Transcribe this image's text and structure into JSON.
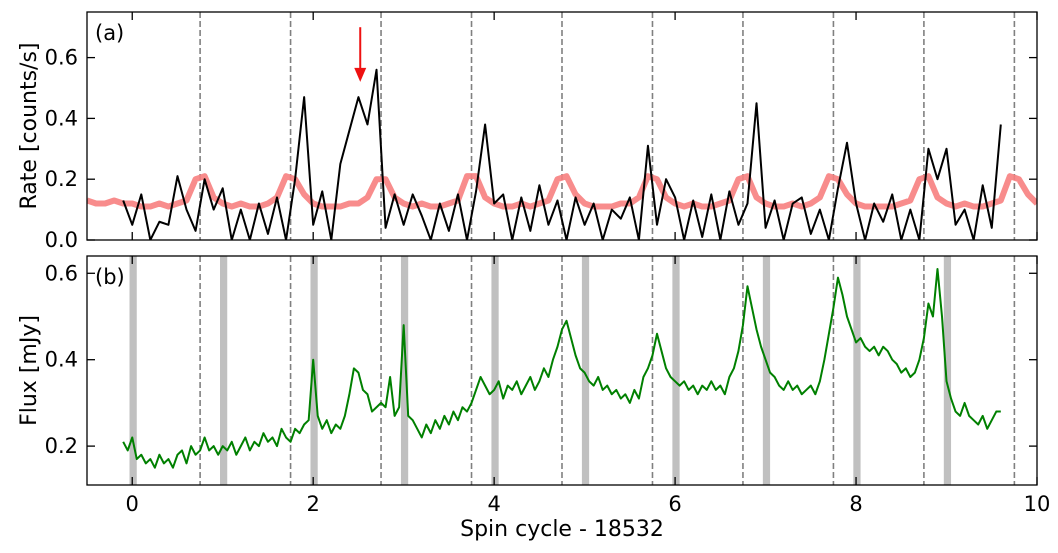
{
  "chart_data": [
    {
      "type": "line",
      "panel_label": "(a)",
      "ylabel": "Rate [counts/s]",
      "xlim": [
        -0.5,
        10
      ],
      "ylim": [
        0,
        0.75
      ],
      "yticks": [
        {
          "value": 0,
          "label": "0.0"
        },
        0.2,
        0.4,
        0.6
      ],
      "vlines": [
        0.75,
        1.75,
        2.75,
        3.75,
        4.75,
        5.75,
        6.75,
        7.75,
        8.75,
        9.75
      ],
      "arrow": {
        "x": 2.52,
        "y": [
          0.7,
          0.52
        ],
        "color": "#ee1111"
      },
      "x": [
        -0.5,
        -0.4,
        -0.3,
        -0.2,
        -0.1,
        0,
        0.1,
        0.2,
        0.3,
        0.4,
        0.5,
        0.6,
        0.7,
        0.8,
        0.9,
        1,
        1.1,
        1.2,
        1.3,
        1.4,
        1.5,
        1.6,
        1.7,
        1.8,
        1.9,
        2,
        2.1,
        2.2,
        2.3,
        2.4,
        2.5,
        2.6,
        2.7,
        2.8,
        2.9,
        3,
        3.1,
        3.2,
        3.3,
        3.4,
        3.5,
        3.6,
        3.7,
        3.8,
        3.9,
        4,
        4.1,
        4.2,
        4.3,
        4.4,
        4.5,
        4.6,
        4.7,
        4.8,
        4.9,
        5,
        5.1,
        5.2,
        5.3,
        5.4,
        5.5,
        5.6,
        5.7,
        5.8,
        5.9,
        6,
        6.1,
        6.2,
        6.3,
        6.4,
        6.5,
        6.6,
        6.7,
        6.8,
        6.9,
        7,
        7.1,
        7.2,
        7.3,
        7.4,
        7.5,
        7.6,
        7.7,
        7.8,
        7.9,
        8,
        8.1,
        8.2,
        8.3,
        8.4,
        8.5,
        8.6,
        8.7,
        8.8,
        8.9,
        9,
        9.1,
        9.2,
        9.3,
        9.4,
        9.5,
        9.6,
        9.7,
        9.8,
        9.9,
        10
      ],
      "series": [
        {
          "color": "#f77f7f",
          "values": [
            0.13,
            0.12,
            0.12,
            0.13,
            0.12,
            0.12,
            0.11,
            0.11,
            0.12,
            0.11,
            0.12,
            0.13,
            0.2,
            0.21,
            0.14,
            0.12,
            0.11,
            0.12,
            0.11,
            0.11,
            0.12,
            0.14,
            0.21,
            0.2,
            0.15,
            0.12,
            0.11,
            0.11,
            0.11,
            0.12,
            0.12,
            0.14,
            0.2,
            0.2,
            0.14,
            0.12,
            0.11,
            0.12,
            0.11,
            0.11,
            0.12,
            0.13,
            0.21,
            0.21,
            0.14,
            0.12,
            0.11,
            0.11,
            0.12,
            0.11,
            0.12,
            0.13,
            0.2,
            0.21,
            0.15,
            0.12,
            0.11,
            0.11,
            0.11,
            0.12,
            0.12,
            0.14,
            0.21,
            0.2,
            0.14,
            0.12,
            0.11,
            0.12,
            0.11,
            0.11,
            0.12,
            0.13,
            0.2,
            0.21,
            0.14,
            0.12,
            0.11,
            0.11,
            0.12,
            0.11,
            0.12,
            0.14,
            0.21,
            0.2,
            0.15,
            0.12,
            0.11,
            0.11,
            0.11,
            0.11,
            0.12,
            0.13,
            0.2,
            0.21,
            0.14,
            0.12,
            0.11,
            0.12,
            0.11,
            0.11,
            0.12,
            0.13,
            0.21,
            0.2,
            0.15,
            0.12
          ]
        },
        {
          "color": "#000000",
          "values": [
            null,
            null,
            null,
            null,
            0.13,
            0.05,
            0.15,
            0.0,
            0.06,
            0.05,
            0.21,
            0.1,
            0.03,
            0.2,
            0.1,
            0.17,
            0.0,
            0.1,
            0.0,
            0.12,
            0.02,
            0.14,
            0.0,
            0.2,
            0.47,
            0.05,
            0.16,
            0.0,
            0.25,
            0.36,
            0.47,
            0.38,
            0.56,
            0.04,
            0.15,
            0.05,
            0.15,
            0.08,
            0.0,
            0.12,
            0.03,
            0.15,
            0.0,
            0.16,
            0.38,
            0.12,
            0.15,
            0.0,
            0.14,
            0.03,
            0.18,
            0.05,
            0.13,
            0.0,
            0.14,
            0.05,
            0.12,
            0.0,
            0.1,
            0.07,
            0.14,
            0.0,
            0.31,
            0.05,
            0.2,
            0.14,
            0.0,
            0.13,
            0.01,
            0.15,
            0.0,
            0.16,
            0.05,
            0.12,
            0.45,
            0.04,
            0.13,
            0.0,
            0.12,
            0.14,
            0.02,
            0.1,
            0.0,
            0.17,
            0.32,
            0.12,
            0.0,
            0.12,
            0.06,
            0.15,
            0.0,
            0.1,
            0.0,
            0.3,
            0.2,
            0.3,
            0.05,
            0.1,
            0.0,
            0.18,
            0.04,
            0.38,
            null,
            null,
            null,
            null
          ]
        }
      ]
    },
    {
      "type": "line",
      "panel_label": "(b)",
      "ylabel": "Flux [mJy]",
      "xlabel": "Spin cycle - 18532",
      "xlim": [
        -0.5,
        10
      ],
      "ylim": [
        0.11,
        0.64
      ],
      "xticks": [
        0,
        2,
        4,
        6,
        8,
        10
      ],
      "yticks": [
        0.2,
        0.4,
        0.6
      ],
      "vlines": [
        0.75,
        1.75,
        2.75,
        3.75,
        4.75,
        5.75,
        6.75,
        7.75,
        8.75,
        9.75
      ],
      "bands": [
        [
          -0.03,
          0.05
        ],
        [
          0.97,
          1.05
        ],
        [
          1.97,
          2.05
        ],
        [
          2.97,
          3.05
        ],
        [
          3.97,
          4.05
        ],
        [
          4.97,
          5.05
        ],
        [
          5.97,
          6.05
        ],
        [
          6.97,
          7.05
        ],
        [
          7.97,
          8.05
        ],
        [
          8.97,
          9.05
        ]
      ],
      "x": [
        -0.1,
        -0.05,
        0,
        0.05,
        0.1,
        0.15,
        0.2,
        0.25,
        0.3,
        0.35,
        0.4,
        0.45,
        0.5,
        0.55,
        0.6,
        0.65,
        0.7,
        0.75,
        0.8,
        0.85,
        0.9,
        0.95,
        1,
        1.05,
        1.1,
        1.15,
        1.2,
        1.25,
        1.3,
        1.35,
        1.4,
        1.45,
        1.5,
        1.55,
        1.6,
        1.65,
        1.7,
        1.75,
        1.8,
        1.85,
        1.9,
        1.95,
        2,
        2.05,
        2.1,
        2.15,
        2.2,
        2.25,
        2.3,
        2.35,
        2.4,
        2.45,
        2.5,
        2.55,
        2.6,
        2.65,
        2.7,
        2.75,
        2.8,
        2.85,
        2.9,
        2.95,
        3,
        3.05,
        3.1,
        3.15,
        3.2,
        3.25,
        3.3,
        3.35,
        3.4,
        3.45,
        3.5,
        3.55,
        3.6,
        3.65,
        3.7,
        3.75,
        3.8,
        3.85,
        3.9,
        3.95,
        4,
        4.05,
        4.1,
        4.15,
        4.2,
        4.25,
        4.3,
        4.35,
        4.4,
        4.45,
        4.5,
        4.55,
        4.6,
        4.65,
        4.7,
        4.75,
        4.8,
        4.85,
        4.9,
        4.95,
        5,
        5.05,
        5.1,
        5.15,
        5.2,
        5.25,
        5.3,
        5.35,
        5.4,
        5.45,
        5.5,
        5.55,
        5.6,
        5.65,
        5.7,
        5.75,
        5.8,
        5.85,
        5.9,
        5.95,
        6,
        6.05,
        6.1,
        6.15,
        6.2,
        6.25,
        6.3,
        6.35,
        6.4,
        6.45,
        6.5,
        6.55,
        6.6,
        6.65,
        6.7,
        6.75,
        6.8,
        6.85,
        6.9,
        6.95,
        7,
        7.05,
        7.1,
        7.15,
        7.2,
        7.25,
        7.3,
        7.35,
        7.4,
        7.45,
        7.5,
        7.55,
        7.6,
        7.65,
        7.7,
        7.75,
        7.8,
        7.85,
        7.9,
        7.95,
        8,
        8.05,
        8.1,
        8.15,
        8.2,
        8.25,
        8.3,
        8.35,
        8.4,
        8.45,
        8.5,
        8.55,
        8.6,
        8.65,
        8.7,
        8.75,
        8.8,
        8.85,
        8.9,
        8.95,
        9,
        9.05,
        9.1,
        9.15,
        9.2,
        9.25,
        9.3,
        9.35,
        9.4,
        9.45,
        9.5,
        9.55,
        9.6
      ],
      "series": [
        {
          "color": "#008000",
          "values": [
            0.21,
            0.19,
            0.22,
            0.17,
            0.18,
            0.16,
            0.17,
            0.15,
            0.18,
            0.16,
            0.17,
            0.15,
            0.18,
            0.19,
            0.16,
            0.2,
            0.18,
            0.19,
            0.22,
            0.19,
            0.2,
            0.18,
            0.2,
            0.19,
            0.21,
            0.18,
            0.2,
            0.22,
            0.19,
            0.21,
            0.2,
            0.23,
            0.21,
            0.22,
            0.2,
            0.24,
            0.22,
            0.21,
            0.24,
            0.23,
            0.25,
            0.26,
            0.4,
            0.27,
            0.24,
            0.26,
            0.23,
            0.25,
            0.24,
            0.27,
            0.32,
            0.38,
            0.37,
            0.33,
            0.32,
            0.28,
            0.29,
            0.3,
            0.29,
            0.36,
            0.27,
            0.29,
            0.48,
            0.27,
            0.26,
            0.24,
            0.22,
            0.25,
            0.23,
            0.26,
            0.24,
            0.27,
            0.25,
            0.28,
            0.26,
            0.29,
            0.28,
            0.3,
            0.33,
            0.36,
            0.34,
            0.32,
            0.33,
            0.35,
            0.31,
            0.34,
            0.33,
            0.35,
            0.32,
            0.34,
            0.36,
            0.33,
            0.35,
            0.38,
            0.36,
            0.4,
            0.43,
            0.47,
            0.49,
            0.45,
            0.41,
            0.38,
            0.37,
            0.35,
            0.34,
            0.36,
            0.33,
            0.34,
            0.32,
            0.33,
            0.31,
            0.32,
            0.3,
            0.33,
            0.31,
            0.36,
            0.38,
            0.41,
            0.46,
            0.42,
            0.38,
            0.36,
            0.35,
            0.34,
            0.35,
            0.33,
            0.34,
            0.32,
            0.34,
            0.33,
            0.35,
            0.33,
            0.34,
            0.32,
            0.36,
            0.38,
            0.42,
            0.48,
            0.57,
            0.52,
            0.47,
            0.43,
            0.4,
            0.37,
            0.36,
            0.34,
            0.33,
            0.35,
            0.33,
            0.34,
            0.32,
            0.33,
            0.34,
            0.32,
            0.35,
            0.4,
            0.46,
            0.52,
            0.59,
            0.55,
            0.5,
            0.47,
            0.44,
            0.45,
            0.43,
            0.42,
            0.43,
            0.41,
            0.43,
            0.42,
            0.4,
            0.39,
            0.37,
            0.38,
            0.36,
            0.37,
            0.4,
            0.45,
            0.53,
            0.5,
            0.61,
            0.5,
            0.35,
            0.31,
            0.28,
            0.27,
            0.3,
            0.27,
            0.26,
            0.25,
            0.27,
            0.24,
            0.26,
            0.28,
            0.28
          ]
        }
      ]
    }
  ]
}
